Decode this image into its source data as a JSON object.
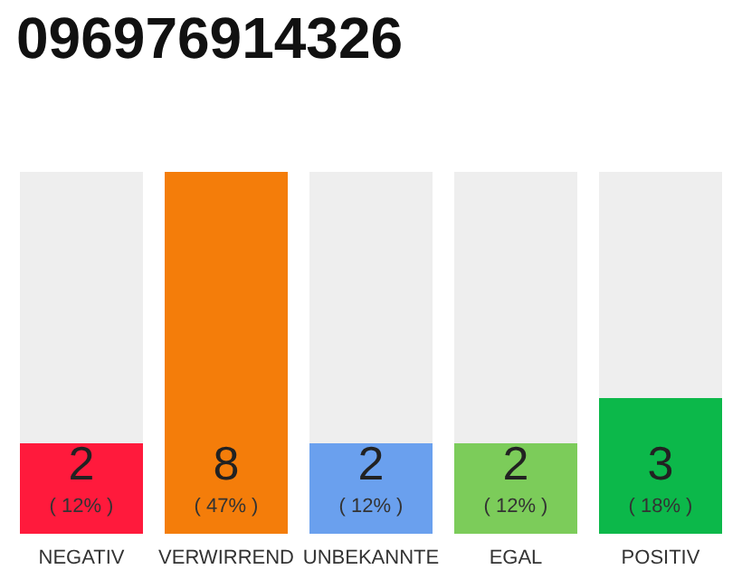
{
  "chart_data": {
    "type": "bar",
    "title": "096976914326",
    "categories": [
      "NEGATIV",
      "VERWIRREND",
      "UNBEKANNTE",
      "EGAL",
      "POSITIV"
    ],
    "values": [
      2,
      8,
      2,
      2,
      3
    ],
    "colors": [
      "#ff1a3c",
      "#f47d0a",
      "#6aa0ee",
      "#7ccc5a",
      "#0cb84a"
    ],
    "data_labels": true,
    "annotations": [
      "( 12% )",
      "( 47% )",
      "( 12% )",
      "( 12% )",
      "( 18% )"
    ]
  }
}
